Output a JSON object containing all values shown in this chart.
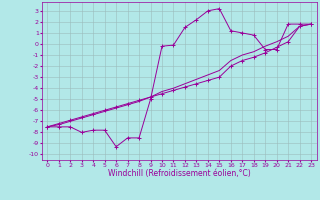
{
  "xlabel": "Windchill (Refroidissement éolien,°C)",
  "background_color": "#b2e8e8",
  "grid_color": "#9bbcbc",
  "line_color": "#990099",
  "xlim": [
    -0.5,
    23.5
  ],
  "ylim": [
    -10.5,
    3.8
  ],
  "xticks": [
    0,
    1,
    2,
    3,
    4,
    5,
    6,
    7,
    8,
    9,
    10,
    11,
    12,
    13,
    14,
    15,
    16,
    17,
    18,
    19,
    20,
    21,
    22,
    23
  ],
  "yticks": [
    3,
    2,
    1,
    0,
    -1,
    -2,
    -3,
    -4,
    -5,
    -6,
    -7,
    -8,
    -9,
    -10
  ],
  "series1_x": [
    0,
    1,
    2,
    3,
    4,
    5,
    6,
    7,
    8,
    9,
    10,
    11,
    12,
    13,
    14,
    15,
    16,
    17,
    18,
    19,
    20,
    21,
    22,
    23
  ],
  "series1_y": [
    -7.5,
    -7.5,
    -7.5,
    -8.0,
    -7.8,
    -7.8,
    -9.3,
    -8.5,
    -8.5,
    -5.0,
    -0.2,
    -0.1,
    1.5,
    2.2,
    3.0,
    3.2,
    1.2,
    1.0,
    0.8,
    -0.5,
    -0.5,
    1.8,
    1.8,
    1.8
  ],
  "series2_x": [
    0,
    1,
    2,
    3,
    4,
    5,
    6,
    7,
    8,
    9,
    10,
    11,
    12,
    13,
    14,
    15,
    16,
    17,
    18,
    19,
    20,
    21,
    22,
    23
  ],
  "series2_y": [
    -7.5,
    -7.2,
    -6.9,
    -6.6,
    -6.3,
    -6.0,
    -5.7,
    -5.4,
    -5.1,
    -4.8,
    -4.5,
    -4.2,
    -3.9,
    -3.6,
    -3.3,
    -3.0,
    -2.0,
    -1.5,
    -1.2,
    -0.8,
    -0.3,
    0.2,
    1.6,
    1.8
  ],
  "series3_x": [
    0,
    1,
    2,
    3,
    4,
    5,
    6,
    7,
    8,
    9,
    10,
    11,
    12,
    13,
    14,
    15,
    16,
    17,
    18,
    19,
    20,
    21,
    22,
    23
  ],
  "series3_y": [
    -7.5,
    -7.3,
    -7.0,
    -6.7,
    -6.4,
    -6.1,
    -5.8,
    -5.5,
    -5.2,
    -4.8,
    -4.3,
    -4.0,
    -3.6,
    -3.2,
    -2.8,
    -2.4,
    -1.5,
    -1.0,
    -0.7,
    -0.2,
    0.2,
    0.7,
    1.6,
    1.8
  ],
  "xlabel_fontsize": 5.5,
  "tick_fontsize": 4.5,
  "linewidth": 0.7,
  "markersize": 2.5
}
